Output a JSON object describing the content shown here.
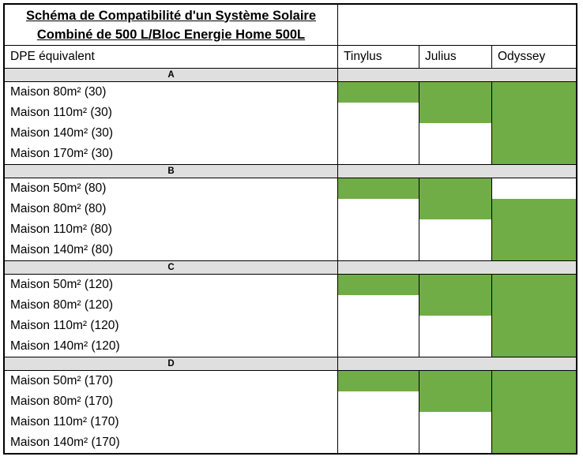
{
  "colors": {
    "green": "#70AD47",
    "band_gray": "#DFDFDF",
    "border": "#000000",
    "background": "#FFFFFF"
  },
  "title": {
    "line1": "Schéma de Compatibilité d'un Système Solaire",
    "line2": "Combiné de 500 L/Bloc Energie Home 500L"
  },
  "header": {
    "row_label": "DPE équivalent",
    "columns": [
      "Tinylus",
      "Julius",
      "Odyssey"
    ]
  },
  "sections": [
    {
      "band": "A",
      "rows": [
        {
          "label": "Maison 80m² (30)",
          "compat": [
            true,
            true,
            true
          ]
        },
        {
          "label": "Maison 110m² (30)",
          "compat": [
            false,
            true,
            true
          ]
        },
        {
          "label": "Maison 140m² (30)",
          "compat": [
            false,
            false,
            true
          ]
        },
        {
          "label": "Maison 170m² (30)",
          "compat": [
            false,
            false,
            true
          ]
        }
      ]
    },
    {
      "band": "B",
      "rows": [
        {
          "label": "Maison 50m² (80)",
          "compat": [
            true,
            true,
            false
          ]
        },
        {
          "label": "Maison 80m² (80)",
          "compat": [
            false,
            true,
            true
          ]
        },
        {
          "label": "Maison 110m² (80)",
          "compat": [
            false,
            false,
            true
          ]
        },
        {
          "label": "Maison 140m² (80)",
          "compat": [
            false,
            false,
            true
          ]
        }
      ]
    },
    {
      "band": "C",
      "rows": [
        {
          "label": "Maison 50m² (120)",
          "compat": [
            true,
            true,
            true
          ]
        },
        {
          "label": "Maison 80m² (120)",
          "compat": [
            false,
            true,
            true
          ]
        },
        {
          "label": "Maison 110m² (120)",
          "compat": [
            false,
            false,
            true
          ]
        },
        {
          "label": "Maison 140m² (120)",
          "compat": [
            false,
            false,
            true
          ]
        }
      ]
    },
    {
      "band": "D",
      "rows": [
        {
          "label": "Maison 50m² (170)",
          "compat": [
            true,
            true,
            true
          ]
        },
        {
          "label": "Maison 80m² (170)",
          "compat": [
            false,
            true,
            true
          ]
        },
        {
          "label": "Maison 110m² (170)",
          "compat": [
            false,
            false,
            true
          ]
        },
        {
          "label": "Maison 140m² (170)",
          "compat": [
            false,
            false,
            true
          ]
        }
      ]
    }
  ]
}
